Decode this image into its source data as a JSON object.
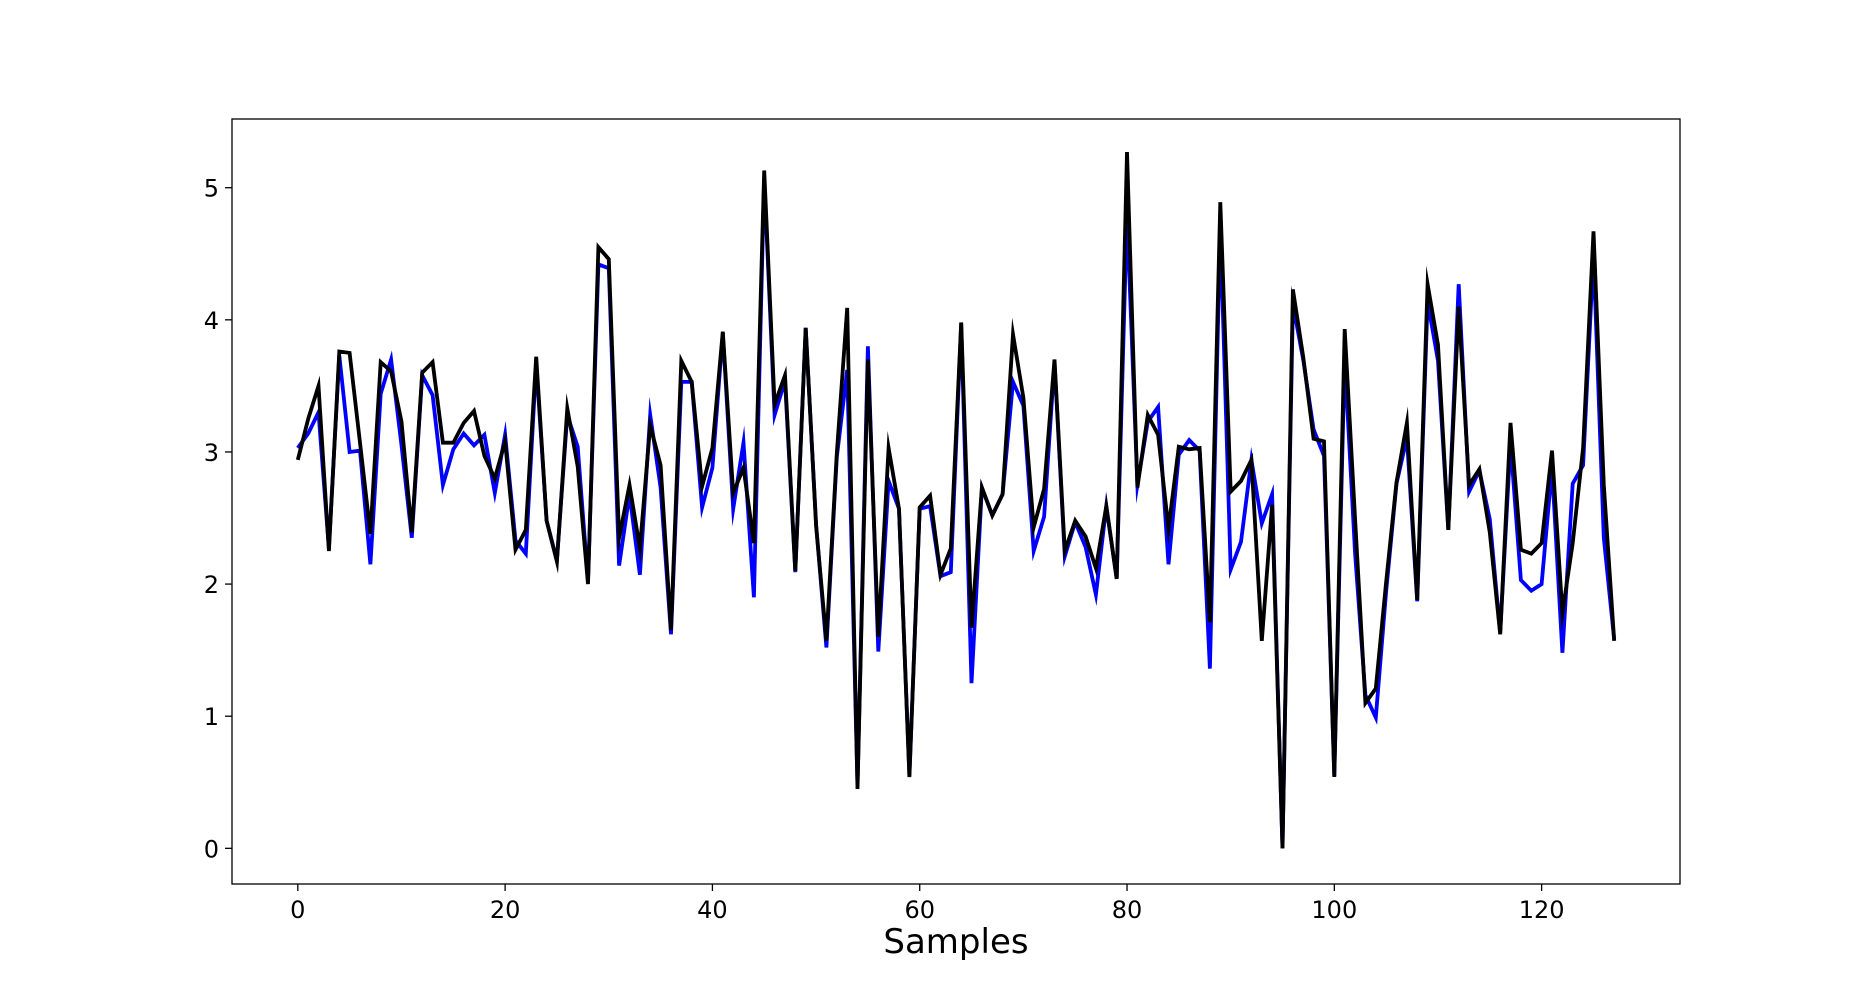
{
  "chart_data": {
    "type": "line",
    "title": "",
    "xlabel": "Samples",
    "ylabel": "",
    "xlim": [
      -6.35,
      133.35
    ],
    "ylim": [
      -0.27,
      5.52
    ],
    "xticks": [
      0,
      20,
      40,
      60,
      80,
      100,
      120
    ],
    "yticks": [
      0,
      1,
      2,
      3,
      4,
      5
    ],
    "grid": false,
    "legend": "none",
    "series": [
      {
        "color": "#0000ff",
        "values": [
          3.03,
          3.14,
          3.3,
          2.27,
          3.73,
          3.0,
          3.01,
          2.15,
          3.44,
          3.7,
          3.05,
          2.35,
          3.58,
          3.43,
          2.75,
          3.02,
          3.14,
          3.05,
          3.13,
          2.69,
          3.13,
          2.33,
          2.23,
          3.67,
          2.48,
          2.18,
          3.28,
          3.04,
          2.02,
          4.42,
          4.39,
          2.14,
          2.68,
          2.07,
          3.28,
          2.73,
          1.62,
          3.53,
          3.53,
          2.58,
          2.88,
          3.9,
          2.57,
          3.07,
          1.9,
          5.08,
          3.28,
          3.54,
          2.09,
          3.94,
          2.45,
          1.52,
          2.96,
          3.62,
          0.47,
          3.8,
          1.49,
          2.78,
          2.57,
          0.55,
          2.57,
          2.59,
          2.06,
          2.09,
          3.97,
          1.25,
          2.73,
          2.52,
          2.68,
          3.53,
          3.35,
          2.25,
          2.51,
          3.68,
          2.21,
          2.47,
          2.28,
          1.92,
          2.59,
          2.04,
          4.81,
          2.75,
          3.23,
          3.34,
          2.15,
          2.98,
          3.09,
          3.01,
          1.36,
          4.71,
          2.11,
          2.32,
          2.94,
          2.46,
          2.68,
          0.0,
          4.12,
          3.7,
          3.17,
          2.97,
          0.55,
          3.71,
          2.23,
          1.16,
          0.99,
          1.95,
          2.76,
          3.11,
          1.87,
          4.14,
          3.69,
          2.41,
          4.27,
          2.7,
          2.86,
          2.49,
          1.63,
          3.07,
          2.03,
          1.95,
          2.0,
          2.88,
          1.48,
          2.76,
          2.9,
          4.5,
          2.35,
          1.58
        ]
      },
      {
        "color": "#000000",
        "values": [
          2.94,
          3.25,
          3.5,
          2.25,
          3.76,
          3.75,
          3.07,
          2.38,
          3.68,
          3.61,
          3.23,
          2.39,
          3.6,
          3.68,
          3.07,
          3.07,
          3.22,
          3.31,
          2.97,
          2.8,
          3.08,
          2.26,
          2.41,
          3.72,
          2.48,
          2.17,
          3.33,
          2.89,
          2.0,
          4.55,
          4.46,
          2.35,
          2.75,
          2.27,
          3.2,
          2.9,
          1.65,
          3.69,
          3.53,
          2.74,
          3.03,
          3.91,
          2.69,
          2.88,
          2.31,
          5.13,
          3.36,
          3.58,
          2.1,
          3.94,
          2.44,
          1.57,
          2.99,
          4.09,
          0.45,
          3.7,
          1.6,
          3.03,
          2.57,
          0.54,
          2.58,
          2.67,
          2.07,
          2.27,
          3.98,
          1.67,
          2.73,
          2.52,
          2.68,
          3.89,
          3.41,
          2.43,
          2.72,
          3.7,
          2.25,
          2.48,
          2.36,
          2.12,
          2.59,
          2.04,
          5.27,
          2.73,
          3.28,
          3.13,
          2.42,
          3.04,
          3.02,
          3.03,
          1.71,
          4.89,
          2.7,
          2.78,
          2.94,
          1.57,
          2.6,
          0.0,
          4.23,
          3.72,
          3.1,
          3.08,
          0.54,
          3.93,
          2.49,
          1.1,
          1.21,
          2.02,
          2.77,
          3.22,
          1.88,
          4.27,
          3.81,
          2.41,
          4.1,
          2.75,
          2.87,
          2.39,
          1.62,
          3.22,
          2.26,
          2.23,
          2.31,
          3.01,
          1.78,
          2.31,
          3.03,
          4.67,
          2.75,
          1.57
        ]
      }
    ]
  }
}
